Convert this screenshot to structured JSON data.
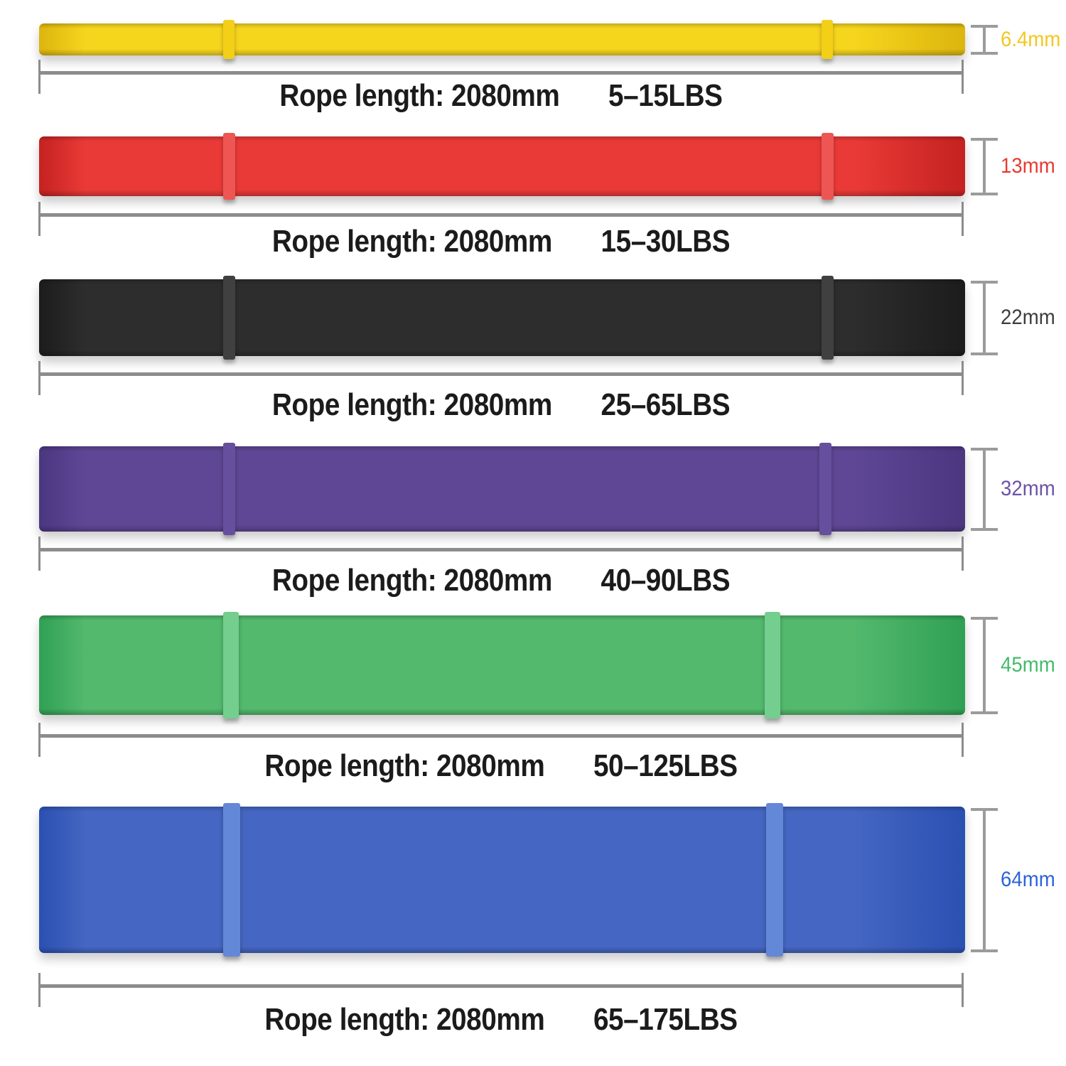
{
  "bands": [
    {
      "color_name": "yellow",
      "width_mm": 6.4,
      "width_label": "6.4mm",
      "rope_length_label": "Rope length: 2080mm",
      "resistance_label": "5–15LBS",
      "resistance_lbs": [
        5,
        15
      ],
      "band_color": "#f6d51d",
      "band_edge_color": "#dcb50e",
      "tab_color": "#f3cf18",
      "label_color": "#f2c71e"
    },
    {
      "color_name": "red",
      "width_mm": 13,
      "width_label": "13mm",
      "rope_length_label": "Rope length: 2080mm",
      "resistance_label": "15–30LBS",
      "resistance_lbs": [
        15,
        30
      ],
      "band_color": "#ea3a37",
      "band_edge_color": "#c42220",
      "tab_color": "#ee5653",
      "label_color": "#e63a33"
    },
    {
      "color_name": "black",
      "width_mm": 22,
      "width_label": "22mm",
      "rope_length_label": "Rope length: 2080mm",
      "resistance_label": "25–65LBS",
      "resistance_lbs": [
        25,
        65
      ],
      "band_color": "#2d2d2d",
      "band_edge_color": "#1c1c1c",
      "tab_color": "#404040",
      "label_color": "#3d3d3d"
    },
    {
      "color_name": "purple",
      "width_mm": 32,
      "width_label": "32mm",
      "rope_length_label": "Rope length: 2080mm",
      "resistance_label": "40–90LBS",
      "resistance_lbs": [
        40,
        90
      ],
      "band_color": "#5f4795",
      "band_edge_color": "#4b3680",
      "tab_color": "#66509e",
      "label_color": "#6b53a6"
    },
    {
      "color_name": "green",
      "width_mm": 45,
      "width_label": "45mm",
      "rope_length_label": "Rope length: 2080mm",
      "resistance_label": "50–125LBS",
      "resistance_lbs": [
        50,
        125
      ],
      "band_color": "#52b96d",
      "band_edge_color": "#30a054",
      "tab_color": "#74ce8e",
      "label_color": "#43bb6b"
    },
    {
      "color_name": "blue",
      "width_mm": 64,
      "width_label": "64mm",
      "rope_length_label": "Rope length: 2080mm",
      "resistance_label": "65–175LBS",
      "resistance_lbs": [
        65,
        175
      ],
      "band_color": "#4566c2",
      "band_edge_color": "#2a50b2",
      "tab_color": "#6488d8",
      "label_color": "#2b63da"
    }
  ],
  "rope_length_mm": 2080,
  "dimension_style": {
    "line_color": "#8c8c8c",
    "bracket_color": "#9b9b9b",
    "caption_text_color": "#1b1b1b"
  }
}
